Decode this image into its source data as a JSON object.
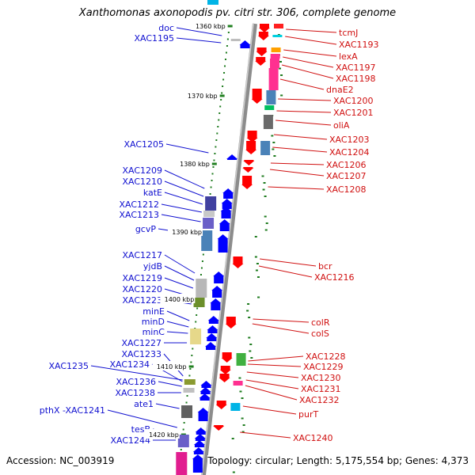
{
  "title": "Xanthomonas axonopodis pv. citri str. 306, complete genome",
  "footer": {
    "accession": "Accession: NC_003919",
    "summary": "Topology: circular; Length: 5,175,554 bp; Genes: 4,373"
  },
  "scale_labels": [
    "1360 kbp",
    "1370 kbp",
    "1380 kbp",
    "1390 kbp",
    "1400 kbp",
    "1410 kbp",
    "1420 kbp"
  ],
  "left_genes": [
    "doc",
    "XAC1195",
    "XAC1205",
    "XAC1209",
    "XAC1210",
    "katE",
    "XAC1212",
    "XAC1213",
    "gcvP",
    "XAC1217",
    "yjdB",
    "XAC1219",
    "XAC1220",
    "XAC1223",
    "minE",
    "minD",
    "minC",
    "XAC1227",
    "XAC1233",
    "XAC1234",
    "XAC1235",
    "XAC1236",
    "XAC1238",
    "ate1",
    "pthX -XAC1241",
    "tesB",
    "XAC1244"
  ],
  "right_genes": [
    "tcmJ",
    "XAC1193",
    "lexA",
    "XAC1197",
    "XAC1198",
    "dnaE2",
    "XAC1200",
    "XAC1201",
    "oliA",
    "XAC1203",
    "XAC1204",
    "XAC1206",
    "XAC1207",
    "XAC1208",
    "bcr",
    "XAC1216",
    "colR",
    "colS",
    "XAC1228",
    "XAC1229",
    "XAC1230",
    "XAC1231",
    "XAC1232",
    "purT",
    "XAC1240"
  ],
  "colors": {
    "backbone": "#8f8f8f",
    "forward_gene": "#0000ff",
    "reverse_gene": "#ff0000",
    "left_label": "#1010d0",
    "right_label": "#d01010",
    "gc_skew_dots": "#208020"
  }
}
